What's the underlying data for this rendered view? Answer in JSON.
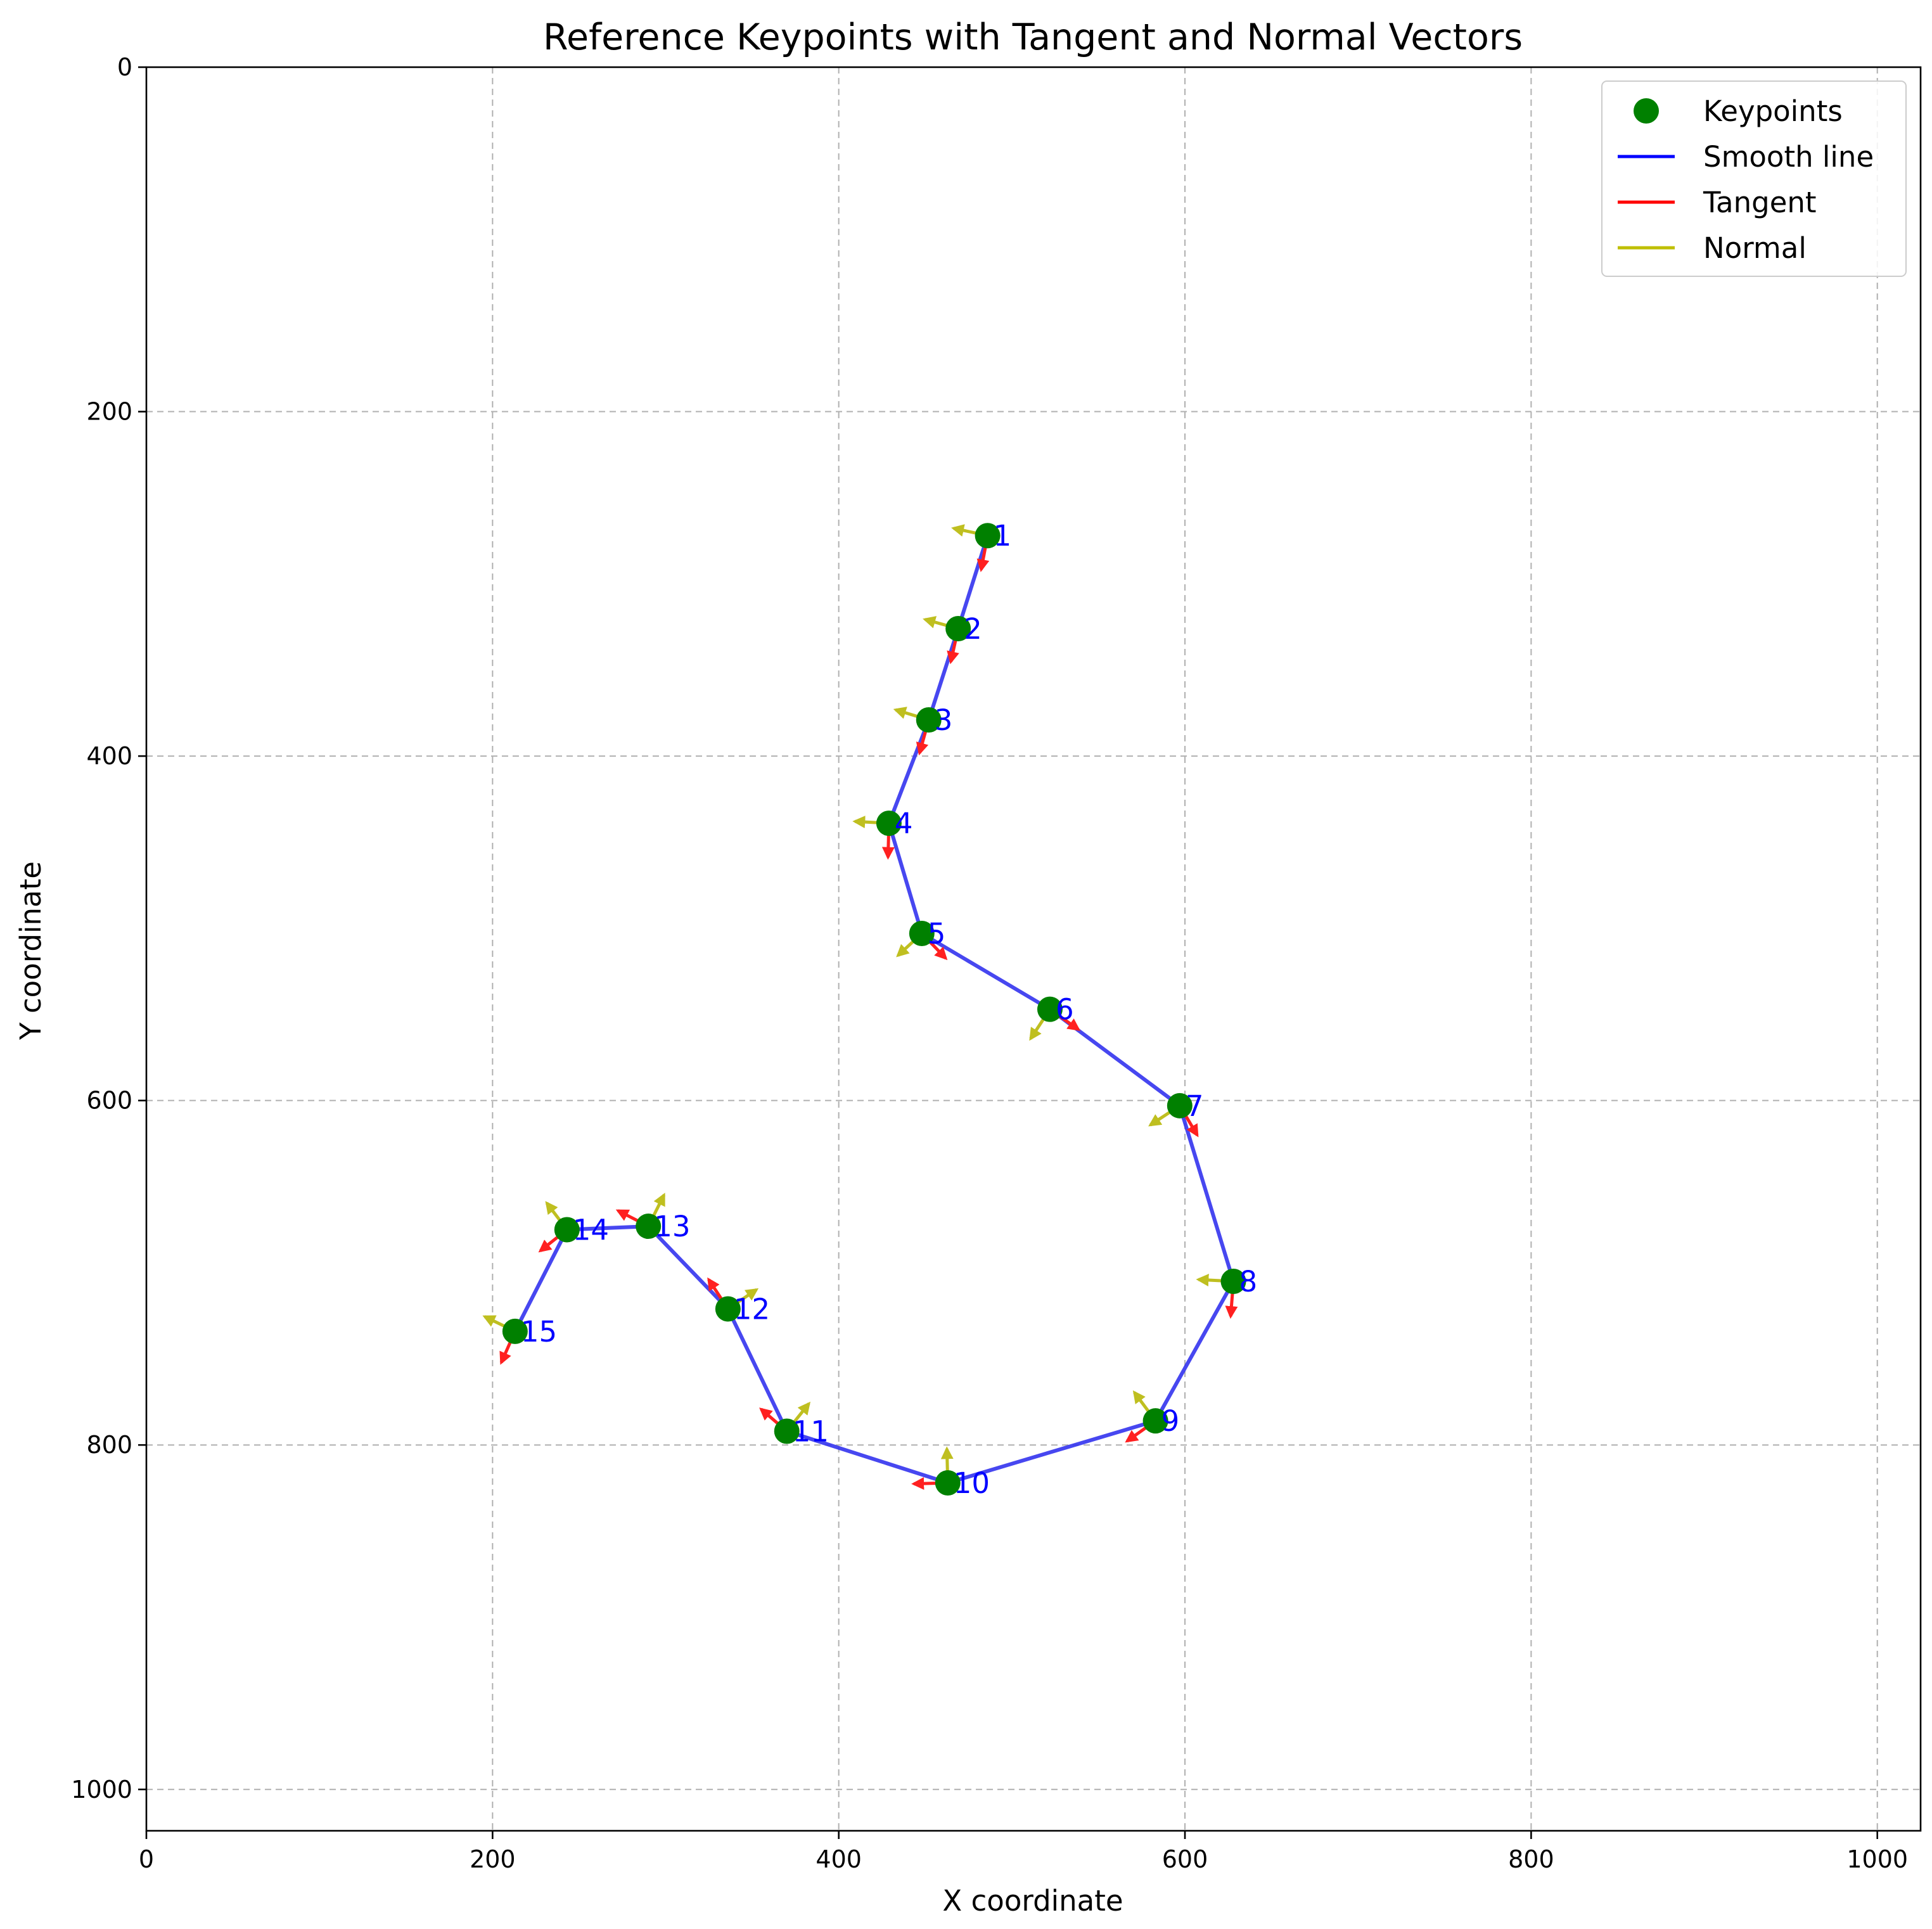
{
  "chart_data": {
    "type": "scatter",
    "title": "Reference Keypoints with Tangent and Normal Vectors",
    "xlabel": "X coordinate",
    "ylabel": "Y coordinate",
    "xlim": [
      0,
      1025
    ],
    "ylim": [
      1024,
      0
    ],
    "xticks": [
      0,
      200,
      400,
      600,
      800,
      1000
    ],
    "yticks": [
      0,
      200,
      400,
      600,
      800,
      1000
    ],
    "grid": true,
    "legend": {
      "placement": "top-right",
      "entries": [
        {
          "label": "Keypoints",
          "kind": "marker",
          "color": "#008000"
        },
        {
          "label": "Smooth line",
          "kind": "line",
          "color": "#0000ff"
        },
        {
          "label": "Tangent",
          "kind": "line",
          "color": "#ff0000"
        },
        {
          "label": "Normal",
          "kind": "line",
          "color": "#bfbf00"
        }
      ]
    },
    "colors": {
      "keypoint": "#008000",
      "line": "#3333ee",
      "tangent": "#ff2020",
      "normal": "#bfbf20",
      "label": "#0000ff"
    },
    "points": [
      {
        "label": "1",
        "x": 486,
        "y": 272,
        "tangent": [
          -7,
          37
        ],
        "normal": [
          -37,
          -8
        ]
      },
      {
        "label": "2",
        "x": 469,
        "y": 326,
        "tangent": [
          -8,
          36
        ],
        "normal": [
          -36,
          -10
        ]
      },
      {
        "label": "3",
        "x": 452,
        "y": 379,
        "tangent": [
          -10,
          36
        ],
        "normal": [
          -36,
          -11
        ]
      },
      {
        "label": "4",
        "x": 429,
        "y": 439,
        "tangent": [
          -1,
          37
        ],
        "normal": [
          -37,
          -2
        ]
      },
      {
        "label": "5",
        "x": 448,
        "y": 503,
        "tangent": [
          26,
          27
        ],
        "normal": [
          -26,
          24
        ]
      },
      {
        "label": "6",
        "x": 522,
        "y": 547,
        "tangent": [
          31,
          22
        ],
        "normal": [
          -21,
          32
        ]
      },
      {
        "label": "7",
        "x": 597,
        "y": 603,
        "tangent": [
          19,
          32
        ],
        "normal": [
          -32,
          21
        ]
      },
      {
        "label": "8",
        "x": 628,
        "y": 705,
        "tangent": [
          -3,
          38
        ],
        "normal": [
          -38,
          -2
        ]
      },
      {
        "label": "9",
        "x": 583,
        "y": 786,
        "tangent": [
          -31,
          22
        ],
        "normal": [
          -23,
          -31
        ]
      },
      {
        "label": "10",
        "x": 463,
        "y": 822,
        "tangent": [
          -37,
          1
        ],
        "normal": [
          -1,
          -37
        ]
      },
      {
        "label": "11",
        "x": 370,
        "y": 792,
        "tangent": [
          -28,
          -24
        ],
        "normal": [
          24,
          -30
        ]
      },
      {
        "label": "12",
        "x": 336,
        "y": 721,
        "tangent": [
          -21,
          -32
        ],
        "normal": [
          31,
          -21
        ]
      },
      {
        "label": "13",
        "x": 290,
        "y": 673,
        "tangent": [
          -33,
          -17
        ],
        "normal": [
          17,
          -34
        ]
      },
      {
        "label": "14",
        "x": 243,
        "y": 675,
        "tangent": [
          -29,
          23
        ],
        "normal": [
          -22,
          -29
        ]
      },
      {
        "label": "15",
        "x": 213,
        "y": 734,
        "tangent": [
          -15,
          34
        ],
        "normal": [
          -33,
          -16
        ]
      }
    ]
  }
}
